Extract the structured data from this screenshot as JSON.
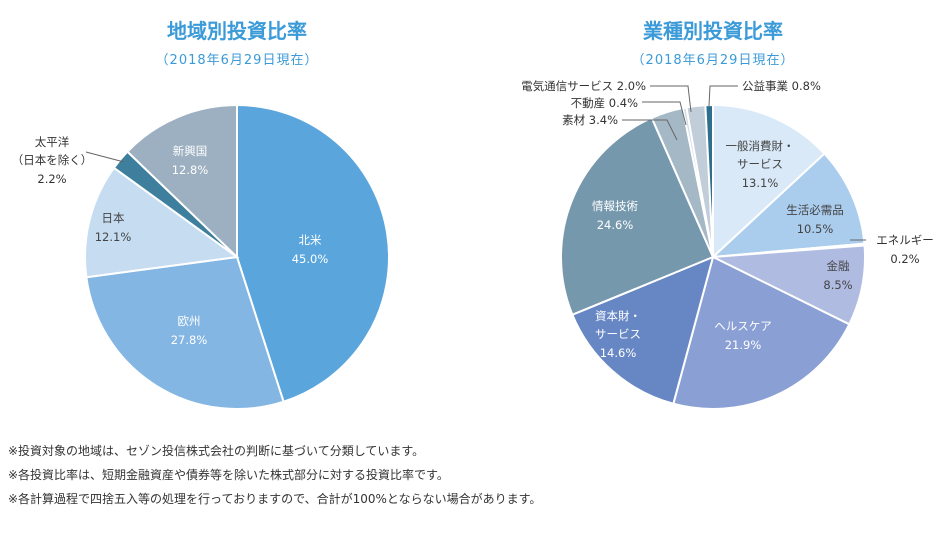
{
  "chart_data": [
    {
      "type": "pie",
      "title": "地域別投資比率",
      "subtitle": "（2018年6月29日現在）",
      "start": "top",
      "direction": "clockwise",
      "slices": [
        {
          "label": [
            "北米"
          ],
          "value": 45.0,
          "value_label": "45.0%",
          "color": "#5aa5dc",
          "text_color": "#ffffff"
        },
        {
          "label": [
            "欧州"
          ],
          "value": 27.8,
          "value_label": "27.8%",
          "color": "#84b6e3",
          "text_color": "#ffffff"
        },
        {
          "label": [
            "日本"
          ],
          "value": 12.1,
          "value_label": "12.1%",
          "color": "#c6dcf1",
          "text_color": "#444444"
        },
        {
          "label": [
            "太平洋",
            "（日本を除く）"
          ],
          "value": 2.2,
          "value_label": "2.2%",
          "color": "#3d7f9c",
          "text_color": "#333333"
        },
        {
          "label": [
            "新興国"
          ],
          "value": 12.8,
          "value_label": "12.8%",
          "color": "#9db0c1",
          "text_color": "#ffffff"
        }
      ]
    },
    {
      "type": "pie",
      "title": "業種別投資比率",
      "subtitle": "（2018年6月29日現在）",
      "start": "top",
      "direction": "clockwise",
      "slices": [
        {
          "label": [
            "一般消費財・",
            "サービス"
          ],
          "value": 13.1,
          "value_label": "13.1%",
          "color": "#d9e9f8",
          "text_color": "#444444"
        },
        {
          "label": [
            "生活必需品"
          ],
          "value": 10.5,
          "value_label": "10.5%",
          "color": "#aacdee",
          "text_color": "#444444"
        },
        {
          "label": [
            "エネルギー"
          ],
          "value": 0.2,
          "value_label": "0.2%",
          "color": "#e8eef5",
          "text_color": "#333333"
        },
        {
          "label": [
            "金融"
          ],
          "value": 8.5,
          "value_label": "8.5%",
          "color": "#afbbe1",
          "text_color": "#444444"
        },
        {
          "label": [
            "ヘルスケア"
          ],
          "value": 21.9,
          "value_label": "21.9%",
          "color": "#8a9fd4",
          "text_color": "#ffffff"
        },
        {
          "label": [
            "資本財・",
            "サービス"
          ],
          "value": 14.6,
          "value_label": "14.6%",
          "color": "#6787c4",
          "text_color": "#ffffff"
        },
        {
          "label": [
            "情報技術"
          ],
          "value": 24.6,
          "value_label": "24.6%",
          "color": "#7698ad",
          "text_color": "#ffffff"
        },
        {
          "label": [
            "素材"
          ],
          "value": 3.4,
          "value_label": "3.4%",
          "color": "#a5b8c6",
          "text_color": "#333333"
        },
        {
          "label": [
            "不動産"
          ],
          "value": 0.4,
          "value_label": "0.4%",
          "color": "#d3dde6",
          "text_color": "#333333"
        },
        {
          "label": [
            "電気通信サービス"
          ],
          "value": 2.0,
          "value_label": "2.0%",
          "color": "#c1cdd8",
          "text_color": "#333333"
        },
        {
          "label": [
            "公益事業"
          ],
          "value": 0.8,
          "value_label": "0.8%",
          "color": "#2e6f8e",
          "text_color": "#333333"
        }
      ]
    }
  ],
  "notes": [
    "※投資対象の地域は、セゾン投信株式会社の判断に基づいて分類しています。",
    "※各投資比率は、短期金融資産や債券等を除いた株式部分に対する投資比率です。",
    "※各計算過程で四捨五入等の処理を行っておりますので、合計が100%とならない場合があります。"
  ]
}
